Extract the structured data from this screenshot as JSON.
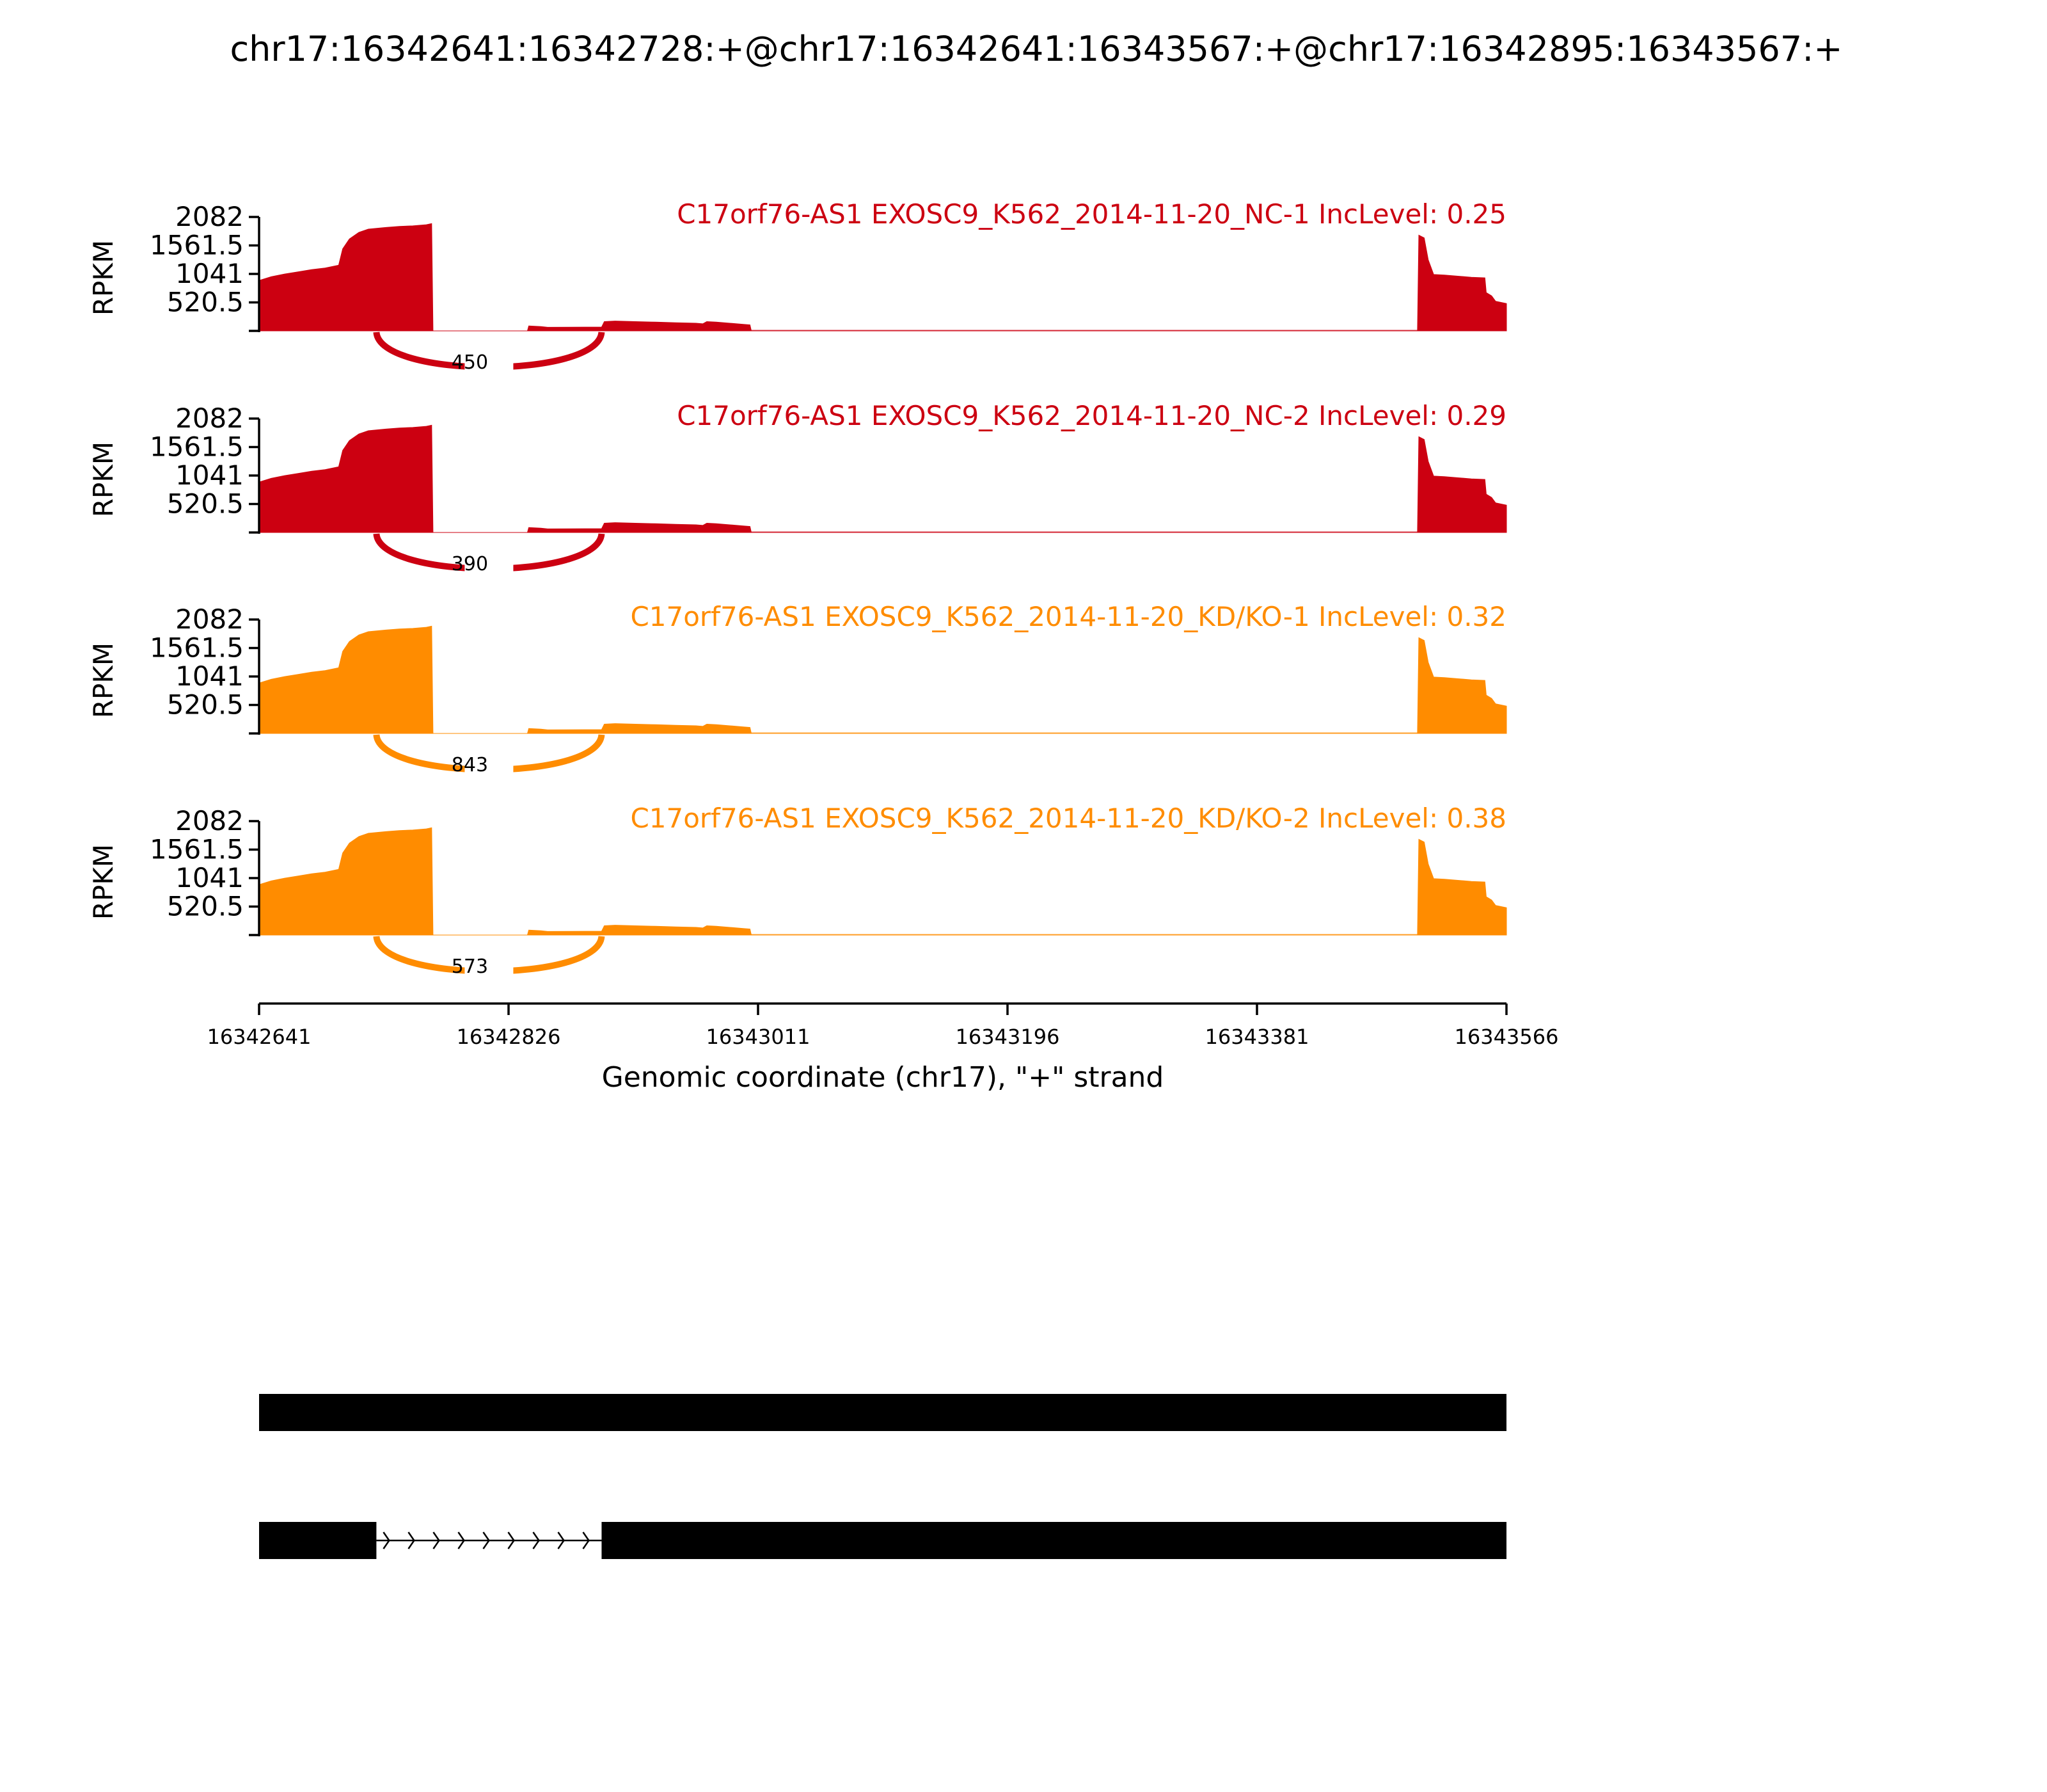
{
  "chart_data": {
    "type": "area",
    "title": "chr17:16342641:16342728:+@chr17:16342641:16343567:+@chr17:16342895:16343567:+",
    "xlabel": "Genomic coordinate (chr17), \"+\" strand",
    "ylabel": "RPKM",
    "xlim": [
      16342641,
      16343566
    ],
    "x_ticks": [
      "16342641",
      "16342826",
      "16343011",
      "16343196",
      "16343381",
      "16343566"
    ],
    "ylim": [
      0,
      2082
    ],
    "y_ticks": [
      "2082",
      "1561.5",
      "1041",
      "520.5"
    ],
    "panels": [
      {
        "label": "C17orf76-AS1 EXOSC9_K562_2014-11-20_NC-1 IncLevel: 0.25",
        "color": "#cc0011",
        "junction": {
          "start": 16342728,
          "end": 16342895,
          "count": "450"
        },
        "coverage": [
          [
            16342641,
            920
          ],
          [
            16342650,
            990
          ],
          [
            16342660,
            1040
          ],
          [
            16342670,
            1080
          ],
          [
            16342680,
            1120
          ],
          [
            16342690,
            1150
          ],
          [
            16342700,
            1200
          ],
          [
            16342703,
            1500
          ],
          [
            16342708,
            1680
          ],
          [
            16342715,
            1800
          ],
          [
            16342722,
            1860
          ],
          [
            16342735,
            1890
          ],
          [
            16342745,
            1910
          ],
          [
            16342755,
            1920
          ],
          [
            16342765,
            1940
          ],
          [
            16342769,
            1960
          ],
          [
            16342770,
            0
          ],
          [
            16342840,
            0
          ],
          [
            16342841,
            90
          ],
          [
            16342850,
            80
          ],
          [
            16342855,
            65
          ],
          [
            16342895,
            70
          ],
          [
            16342897,
            170
          ],
          [
            16342905,
            180
          ],
          [
            16342920,
            170
          ],
          [
            16342935,
            160
          ],
          [
            16342950,
            150
          ],
          [
            16342965,
            140
          ],
          [
            16342970,
            130
          ],
          [
            16342973,
            170
          ],
          [
            16342980,
            160
          ],
          [
            16342990,
            140
          ],
          [
            16343000,
            120
          ],
          [
            16343005,
            110
          ],
          [
            16343006,
            0
          ],
          [
            16343500,
            0
          ],
          [
            16343501,
            1750
          ],
          [
            16343505,
            1700
          ],
          [
            16343508,
            1300
          ],
          [
            16343512,
            1030
          ],
          [
            16343520,
            1020
          ],
          [
            16343530,
            1000
          ],
          [
            16343540,
            980
          ],
          [
            16343550,
            970
          ],
          [
            16343551,
            700
          ],
          [
            16343555,
            640
          ],
          [
            16343558,
            540
          ],
          [
            16343566,
            500
          ]
        ],
        "baseline_from": 16343006,
        "baseline_to": 16343500,
        "baseline_value": 18
      },
      {
        "label": "C17orf76-AS1 EXOSC9_K562_2014-11-20_NC-2 IncLevel: 0.29",
        "color": "#cc0011",
        "junction": {
          "start": 16342728,
          "end": 16342895,
          "count": "390"
        },
        "coverage": [
          [
            16342641,
            920
          ],
          [
            16342650,
            990
          ],
          [
            16342660,
            1040
          ],
          [
            16342670,
            1080
          ],
          [
            16342680,
            1120
          ],
          [
            16342690,
            1150
          ],
          [
            16342700,
            1200
          ],
          [
            16342703,
            1500
          ],
          [
            16342708,
            1680
          ],
          [
            16342715,
            1800
          ],
          [
            16342722,
            1860
          ],
          [
            16342735,
            1890
          ],
          [
            16342745,
            1910
          ],
          [
            16342755,
            1920
          ],
          [
            16342765,
            1940
          ],
          [
            16342769,
            1960
          ],
          [
            16342770,
            0
          ],
          [
            16342840,
            0
          ],
          [
            16342841,
            90
          ],
          [
            16342850,
            80
          ],
          [
            16342855,
            65
          ],
          [
            16342895,
            70
          ],
          [
            16342897,
            170
          ],
          [
            16342905,
            180
          ],
          [
            16342920,
            170
          ],
          [
            16342935,
            160
          ],
          [
            16342950,
            150
          ],
          [
            16342965,
            140
          ],
          [
            16342970,
            130
          ],
          [
            16342973,
            170
          ],
          [
            16342980,
            160
          ],
          [
            16342990,
            140
          ],
          [
            16343000,
            120
          ],
          [
            16343005,
            110
          ],
          [
            16343006,
            0
          ],
          [
            16343500,
            0
          ],
          [
            16343501,
            1750
          ],
          [
            16343505,
            1700
          ],
          [
            16343508,
            1300
          ],
          [
            16343512,
            1030
          ],
          [
            16343520,
            1020
          ],
          [
            16343530,
            1000
          ],
          [
            16343540,
            980
          ],
          [
            16343550,
            970
          ],
          [
            16343551,
            700
          ],
          [
            16343555,
            640
          ],
          [
            16343558,
            540
          ],
          [
            16343566,
            500
          ]
        ],
        "baseline_from": 16343006,
        "baseline_to": 16343500,
        "baseline_value": 18
      },
      {
        "label": "C17orf76-AS1 EXOSC9_K562_2014-11-20_KD/KO-1 IncLevel: 0.32",
        "color": "#ff8c00",
        "junction": {
          "start": 16342728,
          "end": 16342895,
          "count": "843"
        },
        "coverage": [
          [
            16342641,
            920
          ],
          [
            16342650,
            990
          ],
          [
            16342660,
            1040
          ],
          [
            16342670,
            1080
          ],
          [
            16342680,
            1120
          ],
          [
            16342690,
            1150
          ],
          [
            16342700,
            1200
          ],
          [
            16342703,
            1500
          ],
          [
            16342708,
            1680
          ],
          [
            16342715,
            1800
          ],
          [
            16342722,
            1860
          ],
          [
            16342735,
            1890
          ],
          [
            16342745,
            1910
          ],
          [
            16342755,
            1920
          ],
          [
            16342765,
            1940
          ],
          [
            16342769,
            1960
          ],
          [
            16342770,
            0
          ],
          [
            16342840,
            0
          ],
          [
            16342841,
            90
          ],
          [
            16342850,
            80
          ],
          [
            16342855,
            65
          ],
          [
            16342895,
            70
          ],
          [
            16342897,
            170
          ],
          [
            16342905,
            180
          ],
          [
            16342920,
            170
          ],
          [
            16342935,
            160
          ],
          [
            16342950,
            150
          ],
          [
            16342965,
            140
          ],
          [
            16342970,
            130
          ],
          [
            16342973,
            170
          ],
          [
            16342980,
            160
          ],
          [
            16342990,
            140
          ],
          [
            16343000,
            120
          ],
          [
            16343005,
            110
          ],
          [
            16343006,
            0
          ],
          [
            16343500,
            0
          ],
          [
            16343501,
            1750
          ],
          [
            16343505,
            1700
          ],
          [
            16343508,
            1300
          ],
          [
            16343512,
            1030
          ],
          [
            16343520,
            1020
          ],
          [
            16343530,
            1000
          ],
          [
            16343540,
            980
          ],
          [
            16343550,
            970
          ],
          [
            16343551,
            700
          ],
          [
            16343555,
            640
          ],
          [
            16343558,
            540
          ],
          [
            16343566,
            500
          ]
        ],
        "baseline_from": 16343006,
        "baseline_to": 16343500,
        "baseline_value": 18
      },
      {
        "label": "C17orf76-AS1 EXOSC9_K562_2014-11-20_KD/KO-2 IncLevel: 0.38",
        "color": "#ff8c00",
        "junction": {
          "start": 16342728,
          "end": 16342895,
          "count": "573"
        },
        "coverage": [
          [
            16342641,
            920
          ],
          [
            16342650,
            990
          ],
          [
            16342660,
            1040
          ],
          [
            16342670,
            1080
          ],
          [
            16342680,
            1120
          ],
          [
            16342690,
            1150
          ],
          [
            16342700,
            1200
          ],
          [
            16342703,
            1500
          ],
          [
            16342708,
            1680
          ],
          [
            16342715,
            1800
          ],
          [
            16342722,
            1860
          ],
          [
            16342735,
            1890
          ],
          [
            16342745,
            1910
          ],
          [
            16342755,
            1920
          ],
          [
            16342765,
            1940
          ],
          [
            16342769,
            1960
          ],
          [
            16342770,
            0
          ],
          [
            16342840,
            0
          ],
          [
            16342841,
            90
          ],
          [
            16342850,
            80
          ],
          [
            16342855,
            65
          ],
          [
            16342895,
            70
          ],
          [
            16342897,
            170
          ],
          [
            16342905,
            180
          ],
          [
            16342920,
            170
          ],
          [
            16342935,
            160
          ],
          [
            16342950,
            150
          ],
          [
            16342965,
            140
          ],
          [
            16342970,
            130
          ],
          [
            16342973,
            170
          ],
          [
            16342980,
            160
          ],
          [
            16342990,
            140
          ],
          [
            16343000,
            120
          ],
          [
            16343005,
            110
          ],
          [
            16343006,
            0
          ],
          [
            16343500,
            0
          ],
          [
            16343501,
            1750
          ],
          [
            16343505,
            1700
          ],
          [
            16343508,
            1300
          ],
          [
            16343512,
            1030
          ],
          [
            16343520,
            1020
          ],
          [
            16343530,
            1000
          ],
          [
            16343540,
            980
          ],
          [
            16343550,
            970
          ],
          [
            16343551,
            700
          ],
          [
            16343555,
            640
          ],
          [
            16343558,
            540
          ],
          [
            16343566,
            500
          ]
        ],
        "baseline_from": 16343006,
        "baseline_to": 16343500,
        "baseline_value": 18
      }
    ],
    "isoforms": [
      {
        "exons": [
          [
            16342641,
            16343566
          ]
        ]
      },
      {
        "exons": [
          [
            16342641,
            16342728
          ],
          [
            16342895,
            16343566
          ]
        ],
        "intron_arrows": true
      }
    ]
  }
}
